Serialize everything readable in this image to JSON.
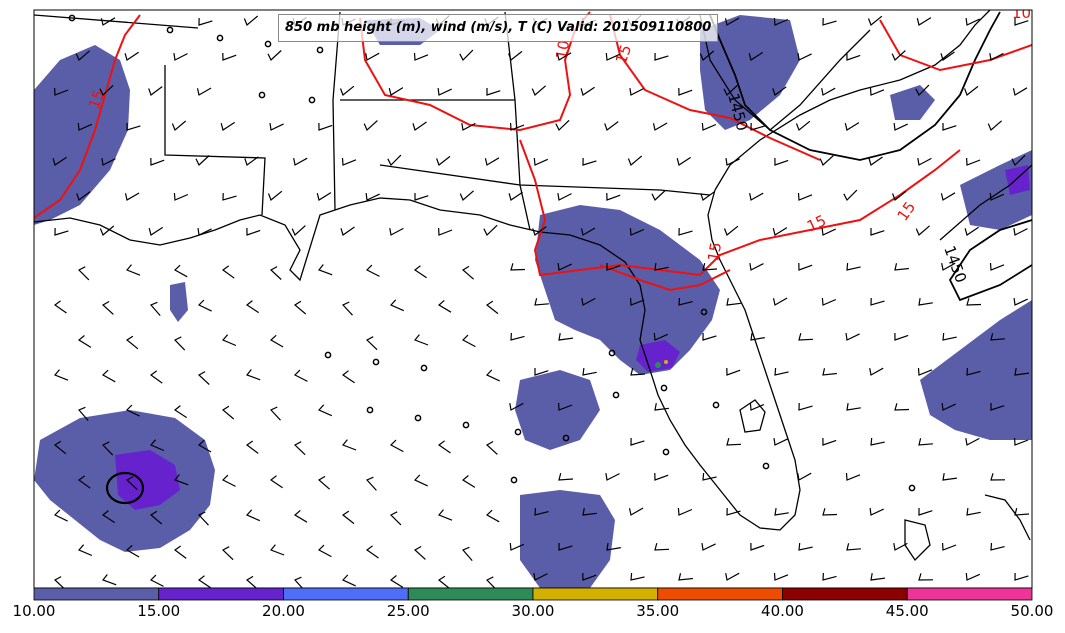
{
  "title": "850 mb height (m), wind (m/s), T (C) Valid: 201509110800",
  "contour_labels": {
    "temp": [
      "15",
      "10",
      "15",
      "15",
      "15",
      "15",
      "10"
    ],
    "height": [
      "1450",
      "1450"
    ]
  },
  "colorbar": {
    "ticks": [
      "10.00",
      "15.00",
      "20.00",
      "25.00",
      "30.00",
      "35.00",
      "40.00",
      "45.00",
      "50.00"
    ],
    "colors": [
      "#5a5ea8",
      "#6622cc",
      "#4f6ef7",
      "#2e8b57",
      "#d4b000",
      "#ee4d00",
      "#8b0000",
      "#ee3399"
    ]
  },
  "colors": {
    "precip_light": "#5a5ea8",
    "precip_mod": "#6622cc",
    "temp_contour": "#ee1111",
    "height_contour": "#000000"
  }
}
